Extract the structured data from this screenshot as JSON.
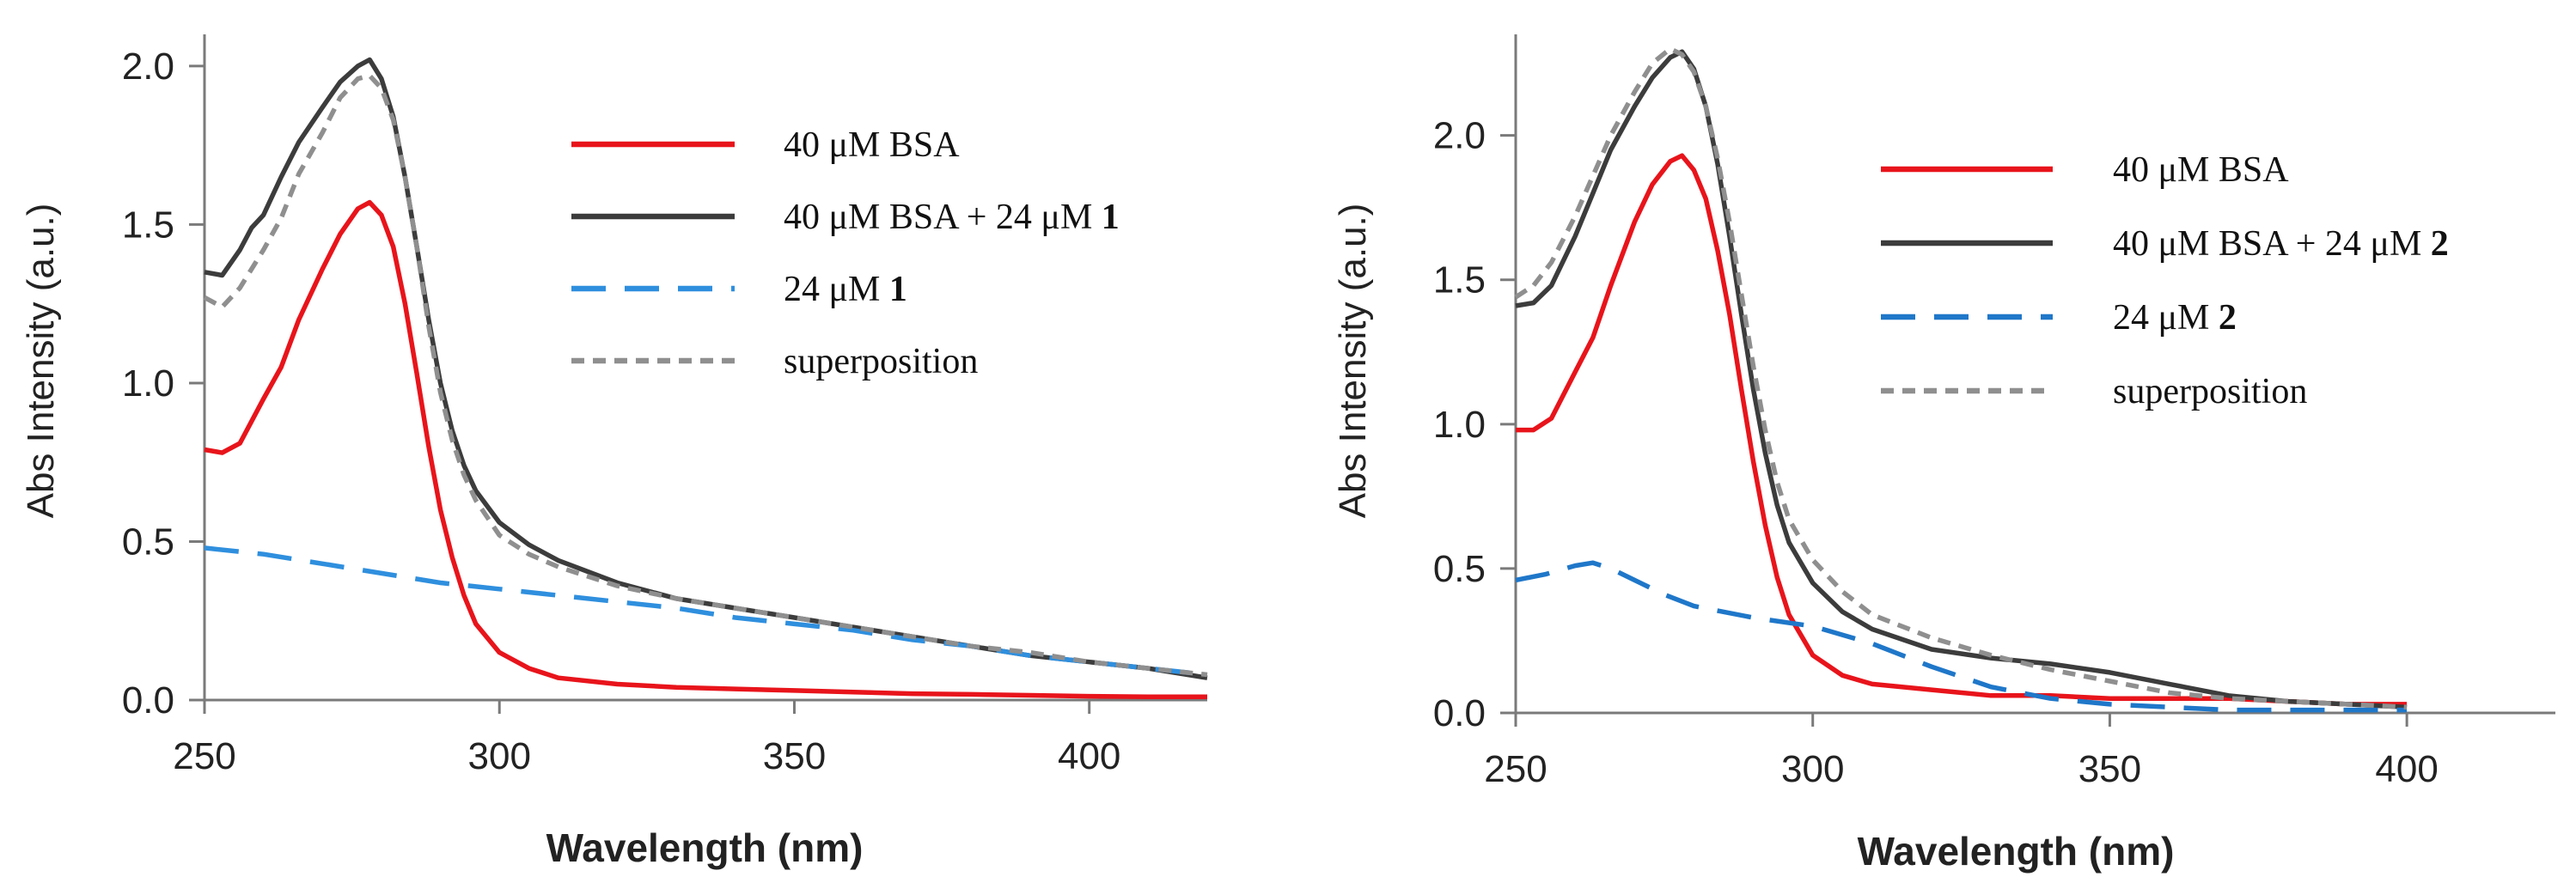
{
  "chart_data": [
    {
      "type": "line",
      "title": "",
      "xlabel": "Wavelength (nm)",
      "ylabel": "Abs Intensity (a.u.)",
      "xlim": [
        250,
        420
      ],
      "ylim": [
        0,
        2.1
      ],
      "xticks": [
        "250",
        "300",
        "350",
        "400"
      ],
      "yticks": [
        "0.0",
        "0.5",
        "1.0",
        "1.5",
        "2.0"
      ],
      "grid": false,
      "legend_position": "top-right",
      "series": [
        {
          "name": "40 μM BSA",
          "label_main": "40 μM BSA",
          "label_bold": "",
          "color": "#e8141b",
          "dash": "solid",
          "x": [
            250,
            253,
            256,
            260,
            263,
            266,
            270,
            273,
            276,
            278,
            280,
            282,
            284,
            286,
            288,
            290,
            292,
            294,
            296,
            300,
            305,
            310,
            320,
            330,
            340,
            350,
            360,
            370,
            380,
            390,
            400,
            410,
            420
          ],
          "y": [
            0.79,
            0.78,
            0.81,
            0.95,
            1.05,
            1.2,
            1.36,
            1.47,
            1.55,
            1.57,
            1.53,
            1.43,
            1.25,
            1.03,
            0.8,
            0.6,
            0.45,
            0.33,
            0.24,
            0.15,
            0.1,
            0.07,
            0.05,
            0.04,
            0.035,
            0.03,
            0.025,
            0.02,
            0.018,
            0.015,
            0.012,
            0.01,
            0.01
          ]
        },
        {
          "name": "40 μM BSA + 24 μM 1",
          "label_main": "40 μM BSA + 24 μM ",
          "label_bold": "1",
          "color": "#3c3c3c",
          "dash": "solid",
          "x": [
            250,
            253,
            256,
            258,
            260,
            263,
            266,
            270,
            273,
            276,
            278,
            280,
            282,
            284,
            286,
            288,
            290,
            292,
            294,
            296,
            300,
            305,
            310,
            320,
            330,
            340,
            350,
            360,
            370,
            380,
            390,
            400,
            410,
            420
          ],
          "y": [
            1.35,
            1.34,
            1.42,
            1.49,
            1.53,
            1.65,
            1.76,
            1.87,
            1.95,
            2.0,
            2.02,
            1.96,
            1.84,
            1.65,
            1.43,
            1.2,
            1.0,
            0.85,
            0.74,
            0.66,
            0.56,
            0.49,
            0.44,
            0.37,
            0.32,
            0.29,
            0.26,
            0.23,
            0.2,
            0.17,
            0.14,
            0.12,
            0.1,
            0.07
          ]
        },
        {
          "name": "24 μM 1",
          "label_main": "24 μM ",
          "label_bold": "1",
          "color": "#2f8fde",
          "dash": "long",
          "x": [
            250,
            260,
            270,
            280,
            290,
            300,
            310,
            320,
            330,
            340,
            350,
            360,
            370,
            380,
            390,
            400,
            410,
            420
          ],
          "y": [
            0.48,
            0.46,
            0.43,
            0.4,
            0.37,
            0.35,
            0.33,
            0.31,
            0.29,
            0.26,
            0.24,
            0.22,
            0.19,
            0.17,
            0.14,
            0.12,
            0.1,
            0.08
          ]
        },
        {
          "name": "superposition",
          "label_main": "superposition",
          "label_bold": "",
          "color": "#8f8f8f",
          "dash": "short",
          "x": [
            250,
            253,
            256,
            260,
            263,
            266,
            270,
            273,
            276,
            278,
            280,
            282,
            284,
            286,
            288,
            290,
            292,
            294,
            296,
            300,
            305,
            310,
            320,
            330,
            340,
            350,
            360,
            370,
            380,
            390,
            400,
            410,
            420
          ],
          "y": [
            1.27,
            1.24,
            1.3,
            1.42,
            1.52,
            1.66,
            1.79,
            1.9,
            1.96,
            1.97,
            1.93,
            1.83,
            1.65,
            1.43,
            1.18,
            0.97,
            0.82,
            0.71,
            0.63,
            0.52,
            0.46,
            0.42,
            0.36,
            0.32,
            0.29,
            0.26,
            0.23,
            0.2,
            0.17,
            0.15,
            0.12,
            0.1,
            0.08
          ]
        }
      ]
    },
    {
      "type": "line",
      "title": "",
      "xlabel": "Wavelength (nm)",
      "ylabel": "Abs Intensity (a.u.)",
      "xlim": [
        250,
        425
      ],
      "ylim": [
        0,
        2.35
      ],
      "xticks": [
        "250",
        "300",
        "350",
        "400"
      ],
      "yticks": [
        "0.0",
        "0.5",
        "1.0",
        "1.5",
        "2.0"
      ],
      "grid": false,
      "legend_position": "top-right",
      "series": [
        {
          "name": "40 μM BSA",
          "label_main": "40 μM BSA",
          "label_bold": "",
          "color": "#e8141b",
          "dash": "solid",
          "x": [
            250,
            253,
            256,
            260,
            263,
            266,
            270,
            273,
            276,
            278,
            280,
            282,
            284,
            286,
            288,
            290,
            292,
            294,
            296,
            300,
            305,
            310,
            320,
            330,
            340,
            350,
            360,
            370,
            380,
            390,
            400
          ],
          "y": [
            0.98,
            0.98,
            1.02,
            1.18,
            1.3,
            1.48,
            1.7,
            1.83,
            1.91,
            1.93,
            1.88,
            1.78,
            1.6,
            1.38,
            1.12,
            0.87,
            0.65,
            0.47,
            0.34,
            0.2,
            0.13,
            0.1,
            0.08,
            0.06,
            0.06,
            0.05,
            0.05,
            0.05,
            0.04,
            0.03,
            0.03
          ]
        },
        {
          "name": "40 μM BSA + 24 μM 2",
          "label_main": "40 μM BSA + 24 μM ",
          "label_bold": "2",
          "color": "#3c3c3c",
          "dash": "solid",
          "x": [
            250,
            253,
            256,
            260,
            263,
            266,
            270,
            273,
            276,
            278,
            280,
            282,
            284,
            286,
            288,
            290,
            292,
            294,
            296,
            300,
            305,
            310,
            320,
            330,
            340,
            350,
            360,
            370,
            380,
            390,
            400
          ],
          "y": [
            1.41,
            1.42,
            1.48,
            1.65,
            1.8,
            1.95,
            2.1,
            2.2,
            2.27,
            2.29,
            2.23,
            2.1,
            1.9,
            1.65,
            1.38,
            1.12,
            0.9,
            0.72,
            0.59,
            0.45,
            0.35,
            0.29,
            0.22,
            0.19,
            0.17,
            0.14,
            0.1,
            0.06,
            0.04,
            0.03,
            0.02
          ]
        },
        {
          "name": "24 μM 2",
          "label_main": "24 μM ",
          "label_bold": "2",
          "color": "#1f77c9",
          "dash": "long",
          "x": [
            250,
            255,
            260,
            263,
            266,
            270,
            275,
            280,
            290,
            300,
            310,
            320,
            330,
            340,
            350,
            360,
            370,
            380,
            390,
            400
          ],
          "y": [
            0.46,
            0.48,
            0.51,
            0.52,
            0.5,
            0.46,
            0.41,
            0.37,
            0.33,
            0.3,
            0.24,
            0.16,
            0.09,
            0.05,
            0.03,
            0.02,
            0.01,
            0.01,
            0.01,
            0.01
          ]
        },
        {
          "name": "superposition",
          "label_main": "superposition",
          "label_bold": "",
          "color": "#8f8f8f",
          "dash": "short",
          "x": [
            250,
            253,
            256,
            260,
            263,
            266,
            270,
            273,
            276,
            278,
            280,
            282,
            284,
            286,
            288,
            290,
            292,
            294,
            296,
            300,
            305,
            310,
            320,
            330,
            340,
            350,
            360,
            370,
            380,
            390,
            400
          ],
          "y": [
            1.44,
            1.48,
            1.56,
            1.72,
            1.86,
            2.0,
            2.15,
            2.25,
            2.3,
            2.28,
            2.22,
            2.1,
            1.92,
            1.7,
            1.45,
            1.2,
            0.98,
            0.8,
            0.67,
            0.53,
            0.42,
            0.34,
            0.26,
            0.2,
            0.15,
            0.11,
            0.07,
            0.05,
            0.04,
            0.03,
            0.02
          ]
        }
      ]
    }
  ]
}
